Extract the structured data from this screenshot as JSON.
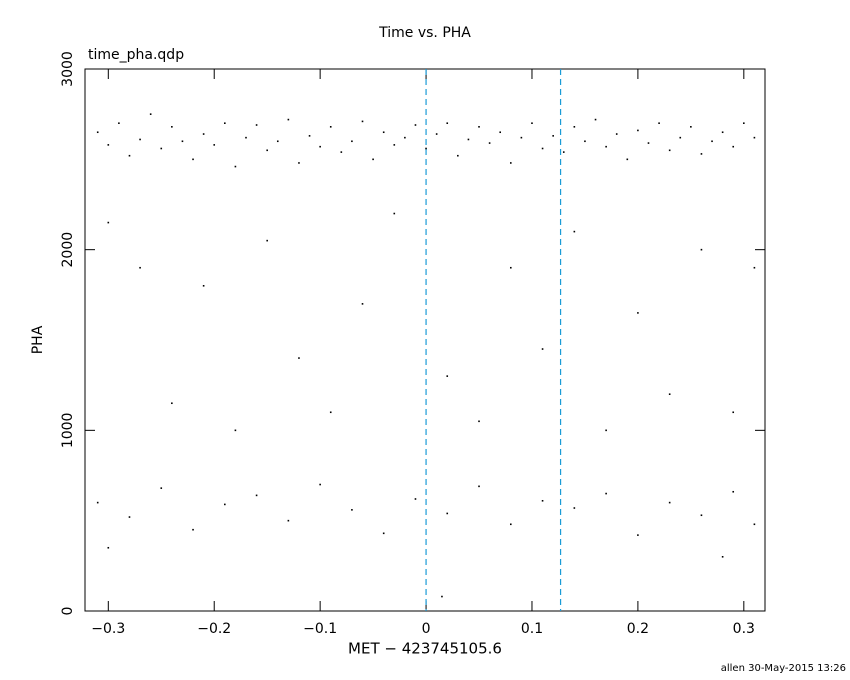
{
  "chart_data": {
    "type": "scatter",
    "title": "Time vs. PHA",
    "subtitle": "time_pha.qdp",
    "x_label": "MET − 423745105.6",
    "y_label": "PHA",
    "footer": "allen 30-May-2015 13:26",
    "color": "#000000",
    "xlim": [
      -0.322,
      0.32
    ],
    "ylim": [
      0,
      3000
    ],
    "xticks": [
      {
        "value": -0.3,
        "label": "−0.3"
      },
      {
        "value": -0.2,
        "label": "−0.2"
      },
      {
        "value": -0.1,
        "label": "−0.1"
      },
      0,
      {
        "value": 0.1,
        "label": "0.1"
      },
      {
        "value": 0.2,
        "label": "0.2"
      },
      {
        "value": 0.3,
        "label": "0.3"
      }
    ],
    "yticks": [
      0,
      1000,
      2000,
      3000
    ],
    "vlines": [
      0,
      0.127
    ],
    "vline_color": "#1a9bd7",
    "x": [
      -0.31,
      -0.3,
      -0.29,
      -0.28,
      -0.27,
      -0.26,
      -0.25,
      -0.24,
      -0.23,
      -0.22,
      -0.21,
      -0.2,
      -0.19,
      -0.18,
      -0.17,
      -0.16,
      -0.15,
      -0.14,
      -0.13,
      -0.12,
      -0.11,
      -0.1,
      -0.09,
      -0.08,
      -0.07,
      -0.06,
      -0.05,
      -0.04,
      -0.03,
      -0.02,
      -0.01,
      0.0,
      0.01,
      0.02,
      0.03,
      0.04,
      0.05,
      0.06,
      0.07,
      0.08,
      0.09,
      0.1,
      0.11,
      0.12,
      0.13,
      0.14,
      0.15,
      0.16,
      0.17,
      0.18,
      0.19,
      0.2,
      0.21,
      0.22,
      0.23,
      0.24,
      0.25,
      0.26,
      0.27,
      0.28,
      0.29,
      0.3,
      0.31,
      -0.3,
      -0.27,
      -0.24,
      -0.21,
      -0.18,
      -0.15,
      -0.12,
      -0.09,
      -0.06,
      -0.03,
      0.02,
      0.05,
      0.08,
      0.11,
      0.14,
      0.17,
      0.2,
      0.23,
      0.26,
      0.29,
      0.31,
      -0.31,
      -0.28,
      -0.25,
      -0.22,
      -0.19,
      -0.16,
      -0.13,
      -0.1,
      -0.07,
      -0.04,
      -0.01,
      0.02,
      0.05,
      0.08,
      0.11,
      0.14,
      0.17,
      0.2,
      0.23,
      0.26,
      0.29,
      0.31,
      0.015,
      -0.3,
      0.28
    ],
    "values": [
      2650,
      2580,
      2700,
      2520,
      2610,
      2750,
      2560,
      2680,
      2600,
      2500,
      2640,
      2580,
      2700,
      2460,
      2620,
      2690,
      2550,
      2600,
      2720,
      2480,
      2630,
      2570,
      2680,
      2540,
      2600,
      2710,
      2500,
      2650,
      2580,
      2620,
      2690,
      2560,
      2640,
      2700,
      2520,
      2610,
      2680,
      2590,
      2650,
      2480,
      2620,
      2700,
      2560,
      2630,
      2540,
      2680,
      2600,
      2720,
      2570,
      2640,
      2500,
      2660,
      2590,
      2700,
      2550,
      2620,
      2680,
      2530,
      2600,
      2650,
      2570,
      2700,
      2620,
      2150,
      1900,
      1150,
      1800,
      1000,
      2050,
      1400,
      1100,
      1700,
      2200,
      1300,
      1050,
      1900,
      1450,
      2100,
      1000,
      1650,
      1200,
      2000,
      1100,
      1900,
      600,
      520,
      680,
      450,
      590,
      640,
      500,
      700,
      560,
      430,
      620,
      540,
      690,
      480,
      610,
      570,
      650,
      420,
      600,
      530,
      660,
      480,
      80,
      350,
      300
    ]
  }
}
